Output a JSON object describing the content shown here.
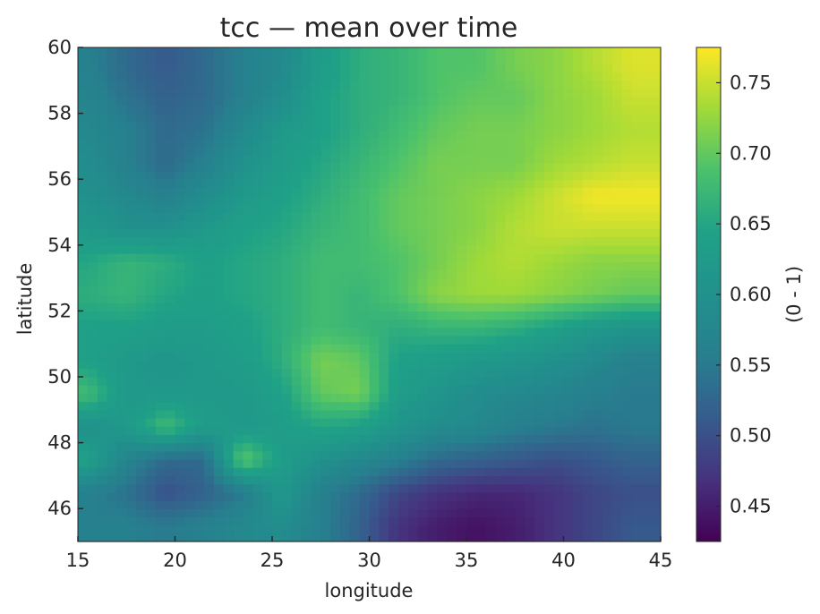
{
  "chart_data": {
    "type": "heatmap",
    "title": "tcc — mean over time",
    "xlabel": "longitude",
    "ylabel": "latitude",
    "xlim": [
      15,
      45
    ],
    "ylim": [
      45,
      60
    ],
    "x_ticks": [
      "15",
      "20",
      "25",
      "30",
      "35",
      "40",
      "45"
    ],
    "y_ticks": [
      "46",
      "48",
      "50",
      "52",
      "54",
      "56",
      "58",
      "60"
    ],
    "colormap": "viridis",
    "colorbar": {
      "label": "(0 - 1)",
      "range": [
        0.425,
        0.775
      ],
      "ticks": [
        "0.45",
        "0.50",
        "0.55",
        "0.60",
        "0.65",
        "0.70",
        "0.75"
      ]
    },
    "grid": false,
    "x_centers": [
      15.5,
      17.5,
      19.5,
      21.5,
      23.5,
      25.5,
      27.5,
      29.5,
      31.5,
      33.5,
      35.5,
      37.5,
      39.5,
      41.5,
      43.5
    ],
    "y_centers": [
      45.5,
      46.5,
      47.5,
      48.5,
      49.5,
      50.5,
      51.5,
      52.5,
      53.5,
      54.5,
      55.5,
      56.5,
      57.5,
      58.5,
      59.5
    ],
    "z_rows_top_to_bottom": [
      [
        0.56,
        0.53,
        0.51,
        0.53,
        0.56,
        0.58,
        0.63,
        0.66,
        0.67,
        0.69,
        0.69,
        0.71,
        0.72,
        0.74,
        0.76
      ],
      [
        0.57,
        0.54,
        0.52,
        0.53,
        0.56,
        0.59,
        0.64,
        0.66,
        0.67,
        0.69,
        0.7,
        0.7,
        0.72,
        0.73,
        0.75
      ],
      [
        0.58,
        0.56,
        0.53,
        0.54,
        0.58,
        0.62,
        0.64,
        0.66,
        0.68,
        0.7,
        0.71,
        0.71,
        0.72,
        0.73,
        0.74
      ],
      [
        0.59,
        0.56,
        0.53,
        0.56,
        0.6,
        0.63,
        0.65,
        0.67,
        0.69,
        0.71,
        0.71,
        0.71,
        0.73,
        0.74,
        0.75
      ],
      [
        0.6,
        0.58,
        0.56,
        0.59,
        0.62,
        0.64,
        0.66,
        0.68,
        0.7,
        0.71,
        0.72,
        0.73,
        0.75,
        0.77,
        0.77
      ],
      [
        0.62,
        0.6,
        0.6,
        0.62,
        0.64,
        0.65,
        0.67,
        0.68,
        0.7,
        0.71,
        0.72,
        0.74,
        0.75,
        0.75,
        0.75
      ],
      [
        0.65,
        0.67,
        0.66,
        0.64,
        0.65,
        0.66,
        0.68,
        0.68,
        0.69,
        0.71,
        0.73,
        0.74,
        0.73,
        0.72,
        0.72
      ],
      [
        0.66,
        0.67,
        0.65,
        0.64,
        0.65,
        0.66,
        0.68,
        0.67,
        0.69,
        0.72,
        0.73,
        0.73,
        0.72,
        0.71,
        0.7
      ],
      [
        0.64,
        0.64,
        0.63,
        0.63,
        0.64,
        0.66,
        0.68,
        0.67,
        0.66,
        0.67,
        0.67,
        0.66,
        0.64,
        0.62,
        0.61
      ],
      [
        0.64,
        0.62,
        0.61,
        0.62,
        0.63,
        0.66,
        0.71,
        0.7,
        0.64,
        0.63,
        0.62,
        0.61,
        0.6,
        0.58,
        0.56
      ],
      [
        0.68,
        0.62,
        0.62,
        0.62,
        0.62,
        0.64,
        0.7,
        0.71,
        0.63,
        0.61,
        0.59,
        0.58,
        0.57,
        0.56,
        0.55
      ],
      [
        0.6,
        0.62,
        0.68,
        0.63,
        0.62,
        0.63,
        0.65,
        0.64,
        0.61,
        0.59,
        0.58,
        0.56,
        0.55,
        0.54,
        0.55
      ],
      [
        0.64,
        0.57,
        0.53,
        0.53,
        0.7,
        0.63,
        0.6,
        0.58,
        0.56,
        0.53,
        0.52,
        0.51,
        0.5,
        0.51,
        0.52
      ],
      [
        0.56,
        0.54,
        0.5,
        0.52,
        0.55,
        0.62,
        0.56,
        0.53,
        0.49,
        0.47,
        0.46,
        0.46,
        0.47,
        0.49,
        0.5
      ],
      [
        0.56,
        0.56,
        0.55,
        0.56,
        0.58,
        0.59,
        0.56,
        0.52,
        0.47,
        0.45,
        0.44,
        0.45,
        0.47,
        0.49,
        0.51
      ]
    ]
  }
}
